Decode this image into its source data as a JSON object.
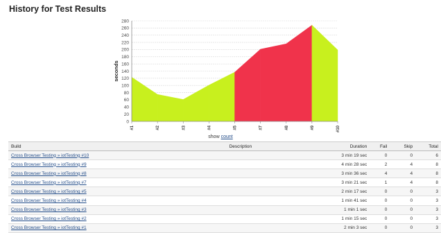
{
  "page": {
    "title": "History for Test Results"
  },
  "chart_data": {
    "type": "area",
    "ylabel": "seconds",
    "xlabel": "",
    "categories": [
      "#1",
      "#2",
      "#3",
      "#4",
      "#5",
      "#7",
      "#8",
      "#9",
      "#10"
    ],
    "values": [
      123,
      75,
      61,
      101,
      137,
      201,
      216,
      268,
      199
    ],
    "status": [
      "pass",
      "pass",
      "pass",
      "pass",
      "pass",
      "fail",
      "fail",
      "fail",
      "pass"
    ],
    "ylim": [
      0,
      280
    ],
    "yticks": [
      0,
      20,
      40,
      60,
      80,
      100,
      120,
      140,
      160,
      180,
      200,
      220,
      240,
      260,
      280
    ],
    "grid": true,
    "colors": {
      "pass": "#c8f01e",
      "fail": "#f0334b"
    }
  },
  "show_count": {
    "prefix": "show",
    "link": "count"
  },
  "table": {
    "headers": {
      "build": "Build",
      "description": "Description",
      "duration": "Duration",
      "fail": "Fail",
      "skip": "Skip",
      "total": "Total"
    },
    "rows": [
      {
        "build": "Cross Browser Testing » iotTesting #10",
        "description": "",
        "duration": "3 min 19 sec",
        "fail": "0",
        "skip": "0",
        "total": "6"
      },
      {
        "build": "Cross Browser Testing » iotTesting #9",
        "description": "",
        "duration": "4 min 28 sec",
        "fail": "2",
        "skip": "4",
        "total": "8"
      },
      {
        "build": "Cross Browser Testing » iotTesting #8",
        "description": "",
        "duration": "3 min 36 sec",
        "fail": "4",
        "skip": "4",
        "total": "8"
      },
      {
        "build": "Cross Browser Testing » iotTesting #7",
        "description": "",
        "duration": "3 min 21 sec",
        "fail": "1",
        "skip": "4",
        "total": "8"
      },
      {
        "build": "Cross Browser Testing » iotTesting #5",
        "description": "",
        "duration": "2 min 17 sec",
        "fail": "0",
        "skip": "0",
        "total": "3"
      },
      {
        "build": "Cross Browser Testing » iotTesting #4",
        "description": "",
        "duration": "1 min 41 sec",
        "fail": "0",
        "skip": "0",
        "total": "3"
      },
      {
        "build": "Cross Browser Testing » iotTesting #3",
        "description": "",
        "duration": "1 min 1 sec",
        "fail": "0",
        "skip": "0",
        "total": "3"
      },
      {
        "build": "Cross Browser Testing » iotTesting #2",
        "description": "",
        "duration": "1 min 15 sec",
        "fail": "0",
        "skip": "0",
        "total": "3"
      },
      {
        "build": "Cross Browser Testing » iotTesting #1",
        "description": "",
        "duration": "2 min 3 sec",
        "fail": "0",
        "skip": "0",
        "total": "3"
      }
    ]
  }
}
